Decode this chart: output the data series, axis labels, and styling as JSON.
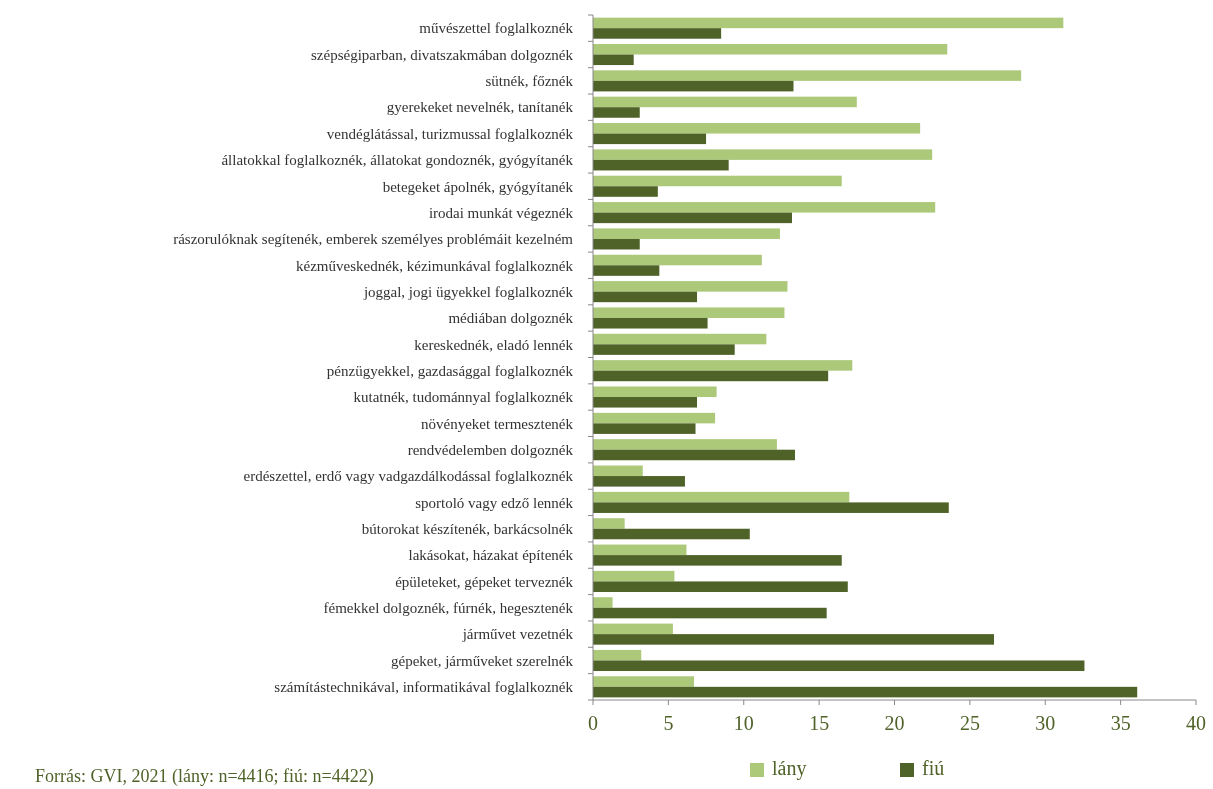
{
  "chart_data": {
    "type": "bar",
    "orientation": "horizontal",
    "categories": [
      "művészettel foglalkoznék",
      "szépségiparban, divatszakmában dolgoznék",
      "sütnék, főznék",
      "gyerekeket nevelnék, tanítanék",
      "vendéglátással, turizmussal foglalkoznék",
      "állatokkal foglalkoznék, állatokat gondoznék, gyógyítanék",
      "betegeket ápolnék, gyógyítanék",
      "irodai munkát végeznék",
      "rászorulóknak segítenék, emberek személyes problémáit kezelném",
      "kézműveskednék, kézimunkával foglalkoznék",
      "joggal, jogi ügyekkel foglalkoznék",
      "médiában dolgoznék",
      "kereskednék, eladó lennék",
      "pénzügyekkel, gazdasággal foglalkoznék",
      "kutatnék, tudománnyal foglalkoznék",
      "növényeket termesztenék",
      "rendvédelemben dolgoznék",
      "erdészettel, erdő vagy vadgazdálkodással foglalkoznék",
      "sportoló vagy edző lennék",
      "bútorokat készítenék, barkácsolnék",
      "lakásokat, házakat építenék",
      "épületeket, gépeket terveznék",
      "fémekkel dolgoznék, fúrnék, hegesztenék",
      "járművet vezetnék",
      "gépeket, járműveket szerelnék",
      "számítástechnikával, informatikával foglalkoznék"
    ],
    "series": [
      {
        "name": "lány",
        "color": "#acc97a",
        "values": [
          31.2,
          23.5,
          28.4,
          17.5,
          21.7,
          22.5,
          16.5,
          22.7,
          12.4,
          11.2,
          12.9,
          12.7,
          11.5,
          17.2,
          8.2,
          8.1,
          12.2,
          3.3,
          17.0,
          2.1,
          6.2,
          5.4,
          1.3,
          5.3,
          3.2,
          6.7
        ]
      },
      {
        "name": "fiú",
        "color": "#4f6228",
        "values": [
          8.5,
          2.7,
          13.3,
          3.1,
          7.5,
          9.0,
          4.3,
          13.2,
          3.1,
          4.4,
          6.9,
          7.6,
          9.4,
          15.6,
          6.9,
          6.8,
          13.4,
          6.1,
          23.6,
          10.4,
          16.5,
          16.9,
          15.5,
          26.6,
          32.6,
          36.1
        ]
      }
    ],
    "xlim": [
      0,
      40
    ],
    "xticks": [
      0,
      5,
      10,
      15,
      20,
      25,
      30,
      35,
      40
    ],
    "grid": false,
    "legend": "bottom",
    "annotations": [
      "Forrás: GVI, 2021 (lány: n=4416; fiú: n=4422)"
    ]
  }
}
